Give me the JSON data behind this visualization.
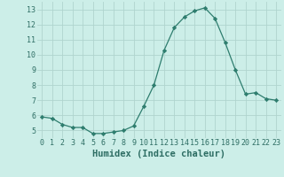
{
  "x": [
    0,
    1,
    2,
    3,
    4,
    5,
    6,
    7,
    8,
    9,
    10,
    11,
    12,
    13,
    14,
    15,
    16,
    17,
    18,
    19,
    20,
    21,
    22,
    23
  ],
  "y": [
    5.9,
    5.8,
    5.4,
    5.2,
    5.2,
    4.8,
    4.8,
    4.9,
    5.0,
    5.3,
    6.6,
    8.0,
    10.3,
    11.8,
    12.5,
    12.9,
    13.1,
    12.4,
    10.8,
    9.0,
    7.4,
    7.5,
    7.1,
    7.0
  ],
  "line_color": "#2e7d6e",
  "marker": "D",
  "marker_size": 2.2,
  "bg_color": "#cceee8",
  "grid_color": "#b0d4ce",
  "xlabel": "Humidex (Indice chaleur)",
  "xlim": [
    -0.5,
    23.5
  ],
  "ylim": [
    4.5,
    13.5
  ],
  "yticks": [
    5,
    6,
    7,
    8,
    9,
    10,
    11,
    12,
    13
  ],
  "xticks": [
    0,
    1,
    2,
    3,
    4,
    5,
    6,
    7,
    8,
    9,
    10,
    11,
    12,
    13,
    14,
    15,
    16,
    17,
    18,
    19,
    20,
    21,
    22,
    23
  ],
  "tick_label_fontsize": 6.0,
  "xlabel_fontsize": 7.5,
  "label_color": "#2e6e64"
}
